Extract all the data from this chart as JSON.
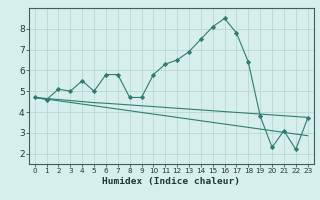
{
  "xlabel": "Humidex (Indice chaleur)",
  "x_values": [
    0,
    1,
    2,
    3,
    4,
    5,
    6,
    7,
    8,
    9,
    10,
    11,
    12,
    13,
    14,
    15,
    16,
    17,
    18,
    19,
    20,
    21,
    22,
    23
  ],
  "y_main": [
    4.7,
    4.6,
    5.1,
    5.0,
    5.5,
    5.0,
    5.8,
    5.8,
    4.7,
    4.7,
    5.8,
    6.3,
    6.5,
    6.9,
    7.5,
    8.1,
    8.5,
    7.8,
    6.4,
    3.8,
    2.3,
    3.1,
    2.2,
    3.7
  ],
  "y_line1": [
    4.7,
    4.65,
    4.6,
    4.55,
    4.5,
    4.45,
    4.42,
    4.38,
    4.34,
    4.3,
    4.26,
    4.22,
    4.18,
    4.14,
    4.1,
    4.06,
    4.02,
    3.98,
    3.94,
    3.9,
    3.86,
    3.82,
    3.78,
    3.74
  ],
  "y_line2": [
    4.7,
    4.62,
    4.54,
    4.46,
    4.38,
    4.3,
    4.22,
    4.14,
    4.06,
    3.98,
    3.9,
    3.82,
    3.74,
    3.66,
    3.58,
    3.5,
    3.42,
    3.34,
    3.26,
    3.18,
    3.1,
    3.02,
    2.94,
    2.86
  ],
  "line_color": "#2e7d6e",
  "bg_color": "#d6eeec",
  "grid_color": "#b8d8d4",
  "ylim": [
    1.5,
    9.0
  ],
  "xlim": [
    -0.5,
    23.5
  ],
  "yticks": [
    2,
    3,
    4,
    5,
    6,
    7,
    8
  ],
  "xticks": [
    0,
    1,
    2,
    3,
    4,
    5,
    6,
    7,
    8,
    9,
    10,
    11,
    12,
    13,
    14,
    15,
    16,
    17,
    18,
    19,
    20,
    21,
    22,
    23
  ]
}
